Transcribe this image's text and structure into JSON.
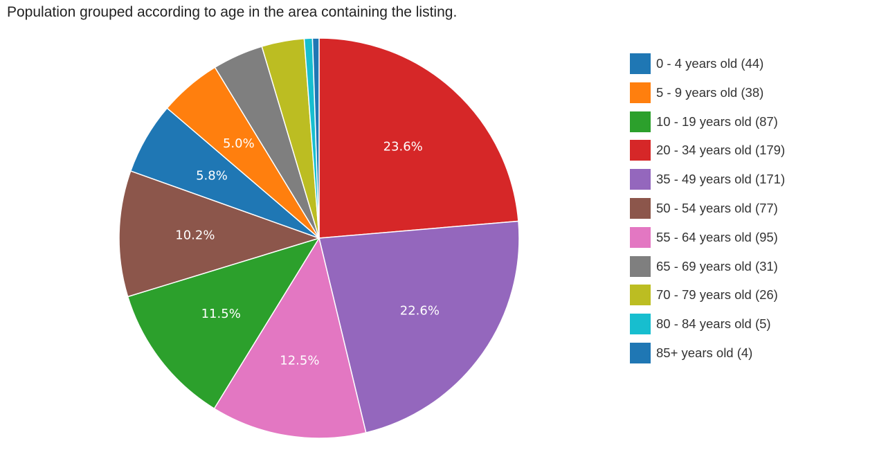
{
  "chart_data": {
    "type": "pie",
    "title": "Population grouped according to age in the area containing the listing.",
    "legend_position": "right",
    "slices": [
      {
        "label": "0 - 4 years old (44)",
        "value": 44,
        "percent_label": "5.8%",
        "color": "#1f77b4"
      },
      {
        "label": "5 - 9 years old (38)",
        "value": 38,
        "percent_label": "5.0%",
        "color": "#ff7f0e"
      },
      {
        "label": "10 - 19 years old (87)",
        "value": 87,
        "percent_label": "11.5%",
        "color": "#2ca02c"
      },
      {
        "label": "20 - 34 years old (179)",
        "value": 179,
        "percent_label": "23.6%",
        "color": "#d62728"
      },
      {
        "label": "35 - 49 years old (171)",
        "value": 171,
        "percent_label": "22.6%",
        "color": "#9467bd"
      },
      {
        "label": "50 - 54 years old (77)",
        "value": 77,
        "percent_label": "10.2%",
        "color": "#8c564b"
      },
      {
        "label": "55 - 64 years old (95)",
        "value": 95,
        "percent_label": "12.5%",
        "color": "#e377c2"
      },
      {
        "label": "65 - 69 years old (31)",
        "value": 31,
        "percent_label": "",
        "color": "#7f7f7f"
      },
      {
        "label": "70 - 79 years old (26)",
        "value": 26,
        "percent_label": "",
        "color": "#bcbd22"
      },
      {
        "label": "80 - 84 years old (5)",
        "value": 5,
        "percent_label": "",
        "color": "#17becf"
      },
      {
        "label": "85+ years old (4)",
        "value": 4,
        "percent_label": "",
        "color": "#1f77b4"
      }
    ],
    "slice_draw_order": [
      3,
      4,
      6,
      2,
      5,
      0,
      1,
      7,
      8,
      9,
      10
    ]
  }
}
